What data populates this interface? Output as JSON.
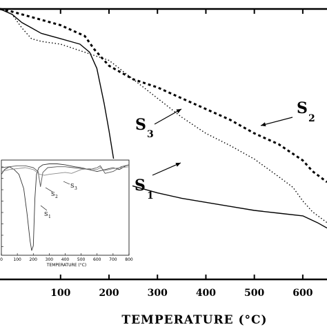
{
  "chart_data": [
    {
      "type": "line",
      "title": "",
      "xlabel": "TEMPERATURE (°C)",
      "ylabel": "",
      "xlim": [
        -25,
        650
      ],
      "ylim": [
        0,
        100
      ],
      "x_ticks": [
        "100",
        "200",
        "300",
        "400",
        "500",
        "600"
      ],
      "grid": false,
      "series": [
        {
          "name": "S1",
          "label_text": "S",
          "label_sub": "1",
          "style": "solid",
          "x": [
            -25,
            0,
            20,
            40,
            60,
            80,
            100,
            120,
            140,
            160,
            175,
            190,
            200,
            210,
            220,
            230,
            240,
            260,
            300,
            350,
            400,
            450,
            500,
            550,
            600,
            630,
            650
          ],
          "y": [
            100,
            98,
            95,
            93,
            91,
            90,
            89,
            88,
            87,
            84,
            78,
            65,
            55,
            44,
            37,
            36,
            35,
            34,
            32,
            30,
            28.5,
            27,
            25.5,
            24.5,
            23.5,
            21,
            19
          ]
        },
        {
          "name": "S2",
          "label_text": "S",
          "label_sub": "2",
          "style": "dashed",
          "x": [
            -25,
            0,
            20,
            50,
            100,
            150,
            170,
            190,
            200,
            210,
            250,
            300,
            350,
            400,
            450,
            500,
            550,
            600,
            620,
            650
          ],
          "y": [
            100,
            99,
            98,
            96.5,
            94,
            90,
            85,
            81,
            79,
            78,
            74,
            71,
            67,
            63,
            59,
            54,
            50,
            44,
            40,
            36
          ]
        },
        {
          "name": "S3",
          "label_text": "S",
          "label_sub": "3",
          "style": "dotted",
          "x": [
            -25,
            0,
            20,
            40,
            60,
            80,
            100,
            150,
            200,
            250,
            300,
            350,
            400,
            450,
            500,
            550,
            580,
            600,
            620,
            650
          ],
          "y": [
            100,
            98,
            93,
            89,
            88,
            87.5,
            87,
            84,
            81,
            74,
            67,
            60,
            54,
            49.5,
            44.5,
            38,
            34,
            29,
            25,
            21
          ]
        }
      ]
    },
    {
      "type": "line",
      "title": "",
      "xlabel": "TEMPERATURE (°C)",
      "ylabel": "",
      "xlim": [
        0,
        800
      ],
      "x_ticks": [
        "0",
        "100",
        "200",
        "300",
        "400",
        "500",
        "600",
        "700",
        "800"
      ],
      "ylim": [
        0,
        100
      ],
      "grid": false,
      "series": [
        {
          "name": "S1",
          "label_text": "S",
          "label_sub": "1",
          "x": [
            0,
            20,
            50,
            80,
            110,
            140,
            160,
            180,
            190,
            200,
            210,
            220,
            235,
            260,
            300,
            350,
            400,
            430,
            460,
            500,
            550,
            600,
            650,
            700,
            740,
            780,
            800
          ],
          "y": [
            85,
            90,
            93,
            90,
            85,
            70,
            45,
            15,
            5,
            10,
            60,
            85,
            92,
            95,
            96,
            96,
            95,
            94,
            93,
            92,
            90,
            88,
            90,
            92,
            90,
            94,
            95
          ]
        },
        {
          "name": "S2",
          "label_text": "S",
          "label_sub": "2",
          "x": [
            0,
            50,
            100,
            150,
            200,
            230,
            245,
            260,
            290,
            350,
            400,
            450,
            500,
            550,
            600,
            620,
            650,
            700,
            750,
            800
          ],
          "y": [
            92,
            93,
            94,
            94,
            92,
            88,
            72,
            87,
            92,
            93,
            93,
            92,
            91,
            90,
            92,
            94,
            86,
            88,
            93,
            95
          ]
        },
        {
          "name": "S3",
          "label_text": "S",
          "label_sub": "3",
          "x": [
            0,
            50,
            100,
            150,
            200,
            240,
            270,
            300,
            350,
            400,
            440,
            470,
            500,
            550,
            600,
            620,
            650,
            700,
            750,
            800
          ],
          "y": [
            88,
            90,
            91,
            92,
            90,
            85,
            84,
            85,
            86,
            87,
            86,
            88,
            90,
            91,
            90,
            92,
            89,
            91,
            92,
            93
          ]
        }
      ]
    }
  ]
}
